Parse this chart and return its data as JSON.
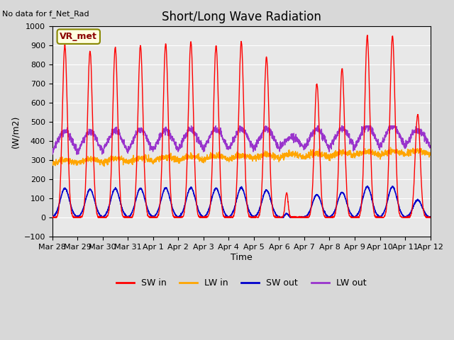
{
  "title": "Short/Long Wave Radiation",
  "xlabel": "Time",
  "ylabel": "(W/m2)",
  "ylim": [
    -100,
    1000
  ],
  "note": "No data for f_Net_Rad",
  "legend_label": "VR_met",
  "line_colors": {
    "SW_in": "#ff0000",
    "LW_in": "#ffa500",
    "SW_out": "#0000cc",
    "LW_out": "#9933cc"
  },
  "legend_entries": [
    "SW in",
    "LW in",
    "SW out",
    "LW out"
  ],
  "legend_colors": [
    "#ff0000",
    "#ffa500",
    "#0000cc",
    "#9933cc"
  ],
  "x_tick_labels": [
    "Mar 28",
    "Mar 29",
    "Mar 30",
    "Mar 31",
    "Apr 1",
    "Apr 2",
    "Apr 3",
    "Apr 4",
    "Apr 5",
    "Apr 6",
    "Apr 7",
    "Apr 8",
    "Apr 9",
    "Apr 10",
    "Apr 11",
    "Apr 12"
  ],
  "plot_bg_color": "#e8e8e8",
  "fig_bg_color": "#d8d8d8",
  "title_fontsize": 12,
  "axis_fontsize": 9,
  "tick_fontsize": 8
}
